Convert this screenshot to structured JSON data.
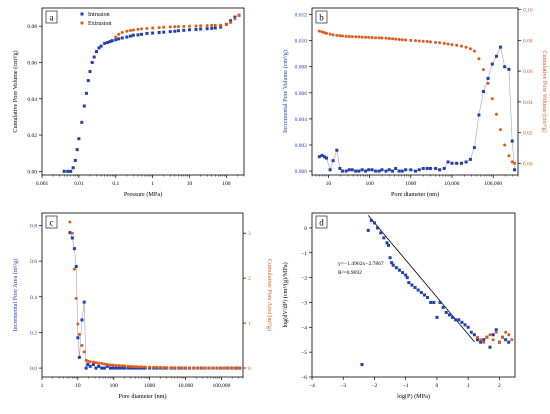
{
  "colors": {
    "blue": "#1f3fb0",
    "orange": "#e05a1a",
    "axis": "#000000",
    "fit_line": "#000000"
  },
  "chart_data": [
    {
      "panel": "a",
      "type": "scatter",
      "xlabel": "Pressure (MPa)",
      "ylabel": "Cumulative Pore Volume (cm³/g)",
      "xscale": "log",
      "xlim": [
        0.001,
        300
      ],
      "ylim": [
        -0.002,
        0.09
      ],
      "xticks": [
        0.001,
        0.01,
        0.1,
        1,
        10,
        100
      ],
      "xtick_labels": [
        "0.001",
        "0.01",
        "0.1",
        "1",
        "10",
        "100"
      ],
      "yticks": [
        0.0,
        0.02,
        0.04,
        0.06,
        0.08
      ],
      "ytick_labels": [
        "0.00",
        "0.02",
        "0.04",
        "0.06",
        "0.08"
      ],
      "legend": "top-left",
      "series": [
        {
          "name": "Intrusion",
          "color": "blue",
          "x": [
            0.004,
            0.005,
            0.006,
            0.007,
            0.008,
            0.009,
            0.01,
            0.012,
            0.014,
            0.016,
            0.018,
            0.02,
            0.023,
            0.026,
            0.03,
            0.035,
            0.04,
            0.05,
            0.06,
            0.07,
            0.08,
            0.1,
            0.12,
            0.15,
            0.2,
            0.25,
            0.3,
            0.4,
            0.5,
            0.7,
            1,
            1.5,
            2,
            3,
            4,
            5,
            7,
            10,
            15,
            20,
            30,
            40,
            50,
            70,
            100,
            130,
            170,
            220
          ],
          "y": [
            0.0,
            0.0,
            0.0,
            0.002,
            0.006,
            0.012,
            0.018,
            0.027,
            0.036,
            0.043,
            0.05,
            0.055,
            0.06,
            0.063,
            0.066,
            0.068,
            0.069,
            0.0705,
            0.071,
            0.0715,
            0.072,
            0.0725,
            0.073,
            0.0735,
            0.074,
            0.0745,
            0.075,
            0.0752,
            0.0755,
            0.076,
            0.0762,
            0.0765,
            0.0767,
            0.077,
            0.0772,
            0.0775,
            0.0777,
            0.078,
            0.0782,
            0.0784,
            0.0786,
            0.0788,
            0.079,
            0.0795,
            0.081,
            0.083,
            0.085,
            0.086
          ]
        },
        {
          "name": "Extrusion",
          "color": "orange",
          "x": [
            0.1,
            0.12,
            0.15,
            0.2,
            0.25,
            0.3,
            0.4,
            0.5,
            0.7,
            1,
            1.5,
            2,
            3,
            4,
            5,
            7,
            10,
            15,
            20,
            30,
            40,
            50,
            70,
            100,
            130,
            170,
            220
          ],
          "y": [
            0.074,
            0.0755,
            0.0765,
            0.0772,
            0.0776,
            0.0779,
            0.0782,
            0.0785,
            0.0787,
            0.079,
            0.0792,
            0.0794,
            0.0796,
            0.0797,
            0.0798,
            0.0799,
            0.08,
            0.0801,
            0.0802,
            0.0803,
            0.0804,
            0.0805,
            0.0806,
            0.081,
            0.082,
            0.084,
            0.086
          ]
        }
      ]
    },
    {
      "panel": "b",
      "type": "scatter",
      "xlabel": "Pore diameter (nm)",
      "ylabel": "Incremental Pore Volume (cm³/g)",
      "ylabel_right": "Cumulative Pore Volume (cm³/g)",
      "xscale": "log",
      "xlim": [
        4,
        400000
      ],
      "ylim": [
        -0.0003,
        0.0125
      ],
      "ylim_right": [
        -0.0075,
        0.101
      ],
      "xticks": [
        10,
        100,
        1000,
        10000,
        100000
      ],
      "xtick_labels": [
        "10",
        "100",
        "1000",
        "10,000",
        "100,000"
      ],
      "yticks": [
        0.0,
        0.002,
        0.004,
        0.006,
        0.008,
        0.01,
        0.012
      ],
      "ytick_labels": [
        "0.000",
        "0.002",
        "0.004",
        "0.006",
        "0.008",
        "0.010",
        "0.012"
      ],
      "yticks_right": [
        0.0,
        0.02,
        0.04,
        0.06,
        0.08,
        0.1
      ],
      "ytick_labels_right": [
        "0.00",
        "0.02",
        "0.04",
        "0.06",
        "0.08",
        "0.10"
      ],
      "series": [
        {
          "name": "",
          "axis": "left",
          "color": "blue",
          "connect": true,
          "x": [
            6,
            7,
            8,
            9,
            11,
            13,
            16,
            19,
            22,
            27,
            32,
            38,
            46,
            55,
            66,
            80,
            95,
            115,
            140,
            170,
            200,
            250,
            300,
            360,
            430,
            520,
            620,
            750,
            1000,
            1300,
            1600,
            2000,
            2500,
            3000,
            4000,
            5000,
            6500,
            8000,
            10000,
            13000,
            17000,
            22000,
            28000,
            35000,
            45000,
            58000,
            75000,
            95000,
            120000,
            150000,
            190000,
            240000,
            290000,
            330000
          ],
          "y": [
            0.0011,
            0.0012,
            0.0011,
            0.001,
            0.0001,
            0.0008,
            0.0016,
            0.0002,
            0.0,
            0.0,
            0.0001,
            0.0001,
            0.0,
            0.0,
            0.0001,
            0.0,
            0.0001,
            0.0001,
            0.0,
            0.0,
            0.0001,
            0.0,
            0.0001,
            0.0,
            0.0002,
            0.0,
            0.0,
            0.0001,
            0.0001,
            0.0,
            0.0001,
            0.0002,
            0.0002,
            0.0002,
            0.0002,
            0.0001,
            0.0002,
            0.0007,
            0.0006,
            0.0006,
            0.0006,
            0.0007,
            0.0009,
            0.0018,
            0.0043,
            0.0061,
            0.0071,
            0.0082,
            0.0088,
            0.0095,
            0.008,
            0.0078,
            0.0023,
            0.0001
          ]
        },
        {
          "name": "",
          "axis": "right",
          "color": "orange",
          "x": [
            6,
            7,
            8,
            9,
            11,
            13,
            16,
            19,
            22,
            27,
            32,
            38,
            46,
            55,
            66,
            80,
            95,
            115,
            140,
            170,
            200,
            250,
            300,
            360,
            430,
            520,
            620,
            750,
            1000,
            1300,
            1600,
            2000,
            2500,
            3000,
            4000,
            5000,
            6500,
            8000,
            10000,
            13000,
            17000,
            22000,
            28000,
            35000,
            45000,
            58000,
            75000,
            95000,
            120000,
            150000,
            190000,
            240000,
            290000,
            330000
          ],
          "y": [
            0.086,
            0.0855,
            0.085,
            0.0845,
            0.084,
            0.0835,
            0.0832,
            0.083,
            0.0828,
            0.0826,
            0.0825,
            0.0824,
            0.0823,
            0.0822,
            0.0821,
            0.082,
            0.0819,
            0.0818,
            0.0817,
            0.0816,
            0.0815,
            0.0814,
            0.0812,
            0.081,
            0.0808,
            0.0806,
            0.0804,
            0.0802,
            0.08,
            0.0798,
            0.0796,
            0.0794,
            0.0792,
            0.079,
            0.0787,
            0.0784,
            0.078,
            0.0776,
            0.0772,
            0.0768,
            0.0762,
            0.0755,
            0.0745,
            0.073,
            0.068,
            0.061,
            0.052,
            0.042,
            0.032,
            0.022,
            0.012,
            0.005,
            0.001,
            0.0
          ]
        }
      ]
    },
    {
      "panel": "c",
      "type": "scatter",
      "xlabel": "Pore diameter (nm)",
      "ylabel": "Incremental Pore Area (m²/g)",
      "ylabel_right": "Cumulative Pore Area (m²/g)",
      "xscale": "log",
      "xlim": [
        1,
        400000
      ],
      "ylim": [
        -0.05,
        0.87
      ],
      "ylim_right": [
        -0.2,
        3.45
      ],
      "xticks": [
        1,
        10,
        100,
        1000,
        10000,
        100000
      ],
      "xtick_labels": [
        "1",
        "10",
        "100",
        "1000",
        "10,000",
        "100,000"
      ],
      "yticks": [
        0.0,
        0.2,
        0.4,
        0.6,
        0.8
      ],
      "ytick_labels": [
        "0.0",
        "0.2",
        "0.4",
        "0.6",
        "0.8"
      ],
      "yticks_right": [
        0,
        1,
        2,
        3
      ],
      "ytick_labels_right": [
        "0",
        "1",
        "2",
        "3"
      ],
      "series": [
        {
          "name": "",
          "axis": "left",
          "color": "blue",
          "connect": true,
          "x": [
            6,
            7,
            8,
            9,
            10,
            11,
            13,
            15,
            17,
            19,
            22,
            27,
            32,
            38,
            46,
            55,
            66,
            80,
            95,
            115,
            140,
            170,
            200,
            250,
            300,
            360,
            430,
            520,
            620,
            750,
            1000,
            1300,
            1600,
            2000,
            2500,
            3000,
            4000,
            5000,
            6500,
            8000,
            10000,
            13000,
            17000,
            22000,
            28000,
            35000,
            45000,
            58000,
            75000,
            95000,
            120000,
            150000,
            190000,
            240000,
            290000,
            330000
          ],
          "y": [
            0.76,
            0.73,
            0.67,
            0.57,
            0.17,
            0.06,
            0.27,
            0.37,
            0.0,
            0.02,
            0.01,
            0.02,
            0.0,
            0.01,
            0.0,
            0.0,
            0.01,
            0.0,
            0.0,
            0.0,
            0.0,
            0.0,
            0.0,
            0.0,
            0.0,
            0.0,
            0.0,
            0.0,
            0.0,
            0.0,
            0.0,
            0.0,
            0.0,
            0.0,
            0.0,
            0.0,
            0.0,
            0.0,
            0.0,
            0.0,
            0.0,
            0.0,
            0.0,
            0.0,
            0.0,
            0.0,
            0.0,
            0.0,
            0.0,
            0.0,
            0.0,
            0.0,
            0.0,
            0.0,
            0.0,
            0.0
          ]
        },
        {
          "name": "",
          "axis": "right",
          "color": "orange",
          "x": [
            6,
            7,
            8,
            9,
            10,
            11,
            13,
            15,
            17,
            19,
            22,
            27,
            32,
            38,
            46,
            55,
            66,
            80,
            95,
            115,
            140,
            170,
            200,
            250,
            300,
            360,
            430,
            520,
            620,
            750,
            1000,
            1300,
            1600,
            2000,
            2500,
            3000,
            4000,
            5000,
            6500,
            8000,
            10000,
            13000,
            17000,
            22000,
            28000,
            35000,
            45000,
            58000,
            75000,
            95000,
            120000,
            150000,
            190000,
            240000,
            290000,
            330000
          ],
          "y": [
            3.25,
            3.0,
            2.2,
            1.55,
            0.98,
            0.75,
            0.5,
            0.36,
            0.17,
            0.15,
            0.14,
            0.13,
            0.12,
            0.11,
            0.1,
            0.09,
            0.08,
            0.07,
            0.065,
            0.06,
            0.055,
            0.05,
            0.045,
            0.04,
            0.035,
            0.03,
            0.028,
            0.026,
            0.024,
            0.022,
            0.02,
            0.018,
            0.016,
            0.014,
            0.012,
            0.01,
            0.008,
            0.006,
            0.005,
            0.004,
            0.003,
            0.002,
            0.001,
            0.0,
            0.0,
            0.0,
            0.0,
            0.0,
            0.0,
            0.0,
            0.0,
            0.0,
            0.0,
            0.0,
            0.0,
            0.0
          ]
        }
      ]
    },
    {
      "panel": "d",
      "type": "scatter",
      "xlabel": "log(P) (MPa)",
      "ylabel": "log(dV/dP) (cm³/(g)/MPa)",
      "xlim": [
        -4,
        2.5
      ],
      "ylim": [
        -6,
        0.6
      ],
      "xticks": [
        -4,
        -3,
        -2,
        -1,
        0,
        1,
        2
      ],
      "xtick_labels": [
        "−4",
        "−3",
        "−2",
        "−1",
        "0",
        "1",
        "2"
      ],
      "yticks": [
        -6,
        -5,
        -4,
        -3,
        -2,
        -1,
        0
      ],
      "ytick_labels": [
        "−6",
        "−5",
        "−4",
        "−3",
        "−2",
        "−1",
        "0"
      ],
      "annotation": [
        "y=−1.4962x−2.7867",
        "R²=0.9692"
      ],
      "fit_line": {
        "slope": -1.4962,
        "intercept": -2.7867,
        "x_range": [
          -2.2,
          1.2
        ]
      },
      "series": [
        {
          "name": "",
          "color": "blue",
          "x": [
            -2.4,
            -2.2,
            -2.1,
            -2.0,
            -1.9,
            -1.8,
            -1.7,
            -1.6,
            -1.55,
            -1.5,
            -1.45,
            -1.4,
            -1.3,
            -1.2,
            -1.1,
            -1.0,
            -0.95,
            -0.9,
            -0.8,
            -0.7,
            -0.6,
            -0.5,
            -0.4,
            -0.3,
            -0.2,
            -0.1,
            0.0,
            0.1,
            0.2,
            0.3,
            0.4,
            0.5,
            0.6,
            0.7,
            0.8,
            0.9,
            1.0,
            1.1,
            1.2,
            1.3,
            1.4,
            1.5,
            1.6,
            1.7,
            1.8,
            1.9,
            2.0,
            2.1,
            2.2,
            2.3
          ],
          "y": [
            -5.5,
            -0.1,
            0.3,
            0.2,
            0.0,
            -0.2,
            -0.4,
            -0.6,
            -0.7,
            -1.2,
            -1.4,
            -1.5,
            -1.6,
            -1.7,
            -1.8,
            -1.9,
            -2.0,
            -2.2,
            -2.3,
            -2.4,
            -2.5,
            -2.6,
            -2.7,
            -2.8,
            -3.0,
            -3.0,
            -3.6,
            -3.0,
            -3.2,
            -3.4,
            -3.5,
            -3.6,
            -3.7,
            -3.7,
            -3.8,
            -3.9,
            -4.0,
            -4.2,
            -4.3,
            -4.5,
            -4.6,
            -4.5,
            -4.4,
            -4.8,
            -4.3,
            -4.1,
            -4.6,
            -4.4,
            -4.5,
            -4.6
          ]
        },
        {
          "name": "",
          "color": "orange",
          "x": [
            1.3,
            1.4,
            1.5,
            1.6,
            1.7,
            1.8,
            1.9,
            2.0,
            2.1,
            2.2,
            2.3,
            2.4
          ],
          "y": [
            -4.4,
            -4.5,
            -4.6,
            -4.4,
            -4.3,
            -4.5,
            -4.2,
            -4.6,
            -4.4,
            -4.2,
            -4.3,
            -4.5
          ]
        }
      ]
    }
  ]
}
